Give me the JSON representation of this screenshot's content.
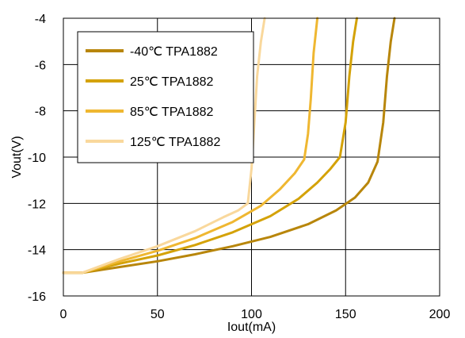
{
  "chart_data": {
    "type": "line",
    "xlabel": "Iout(mA)",
    "ylabel": "Vout(V)",
    "xlim": [
      0,
      200
    ],
    "ylim": [
      -16,
      -4
    ],
    "x_ticks": [
      "0",
      "50",
      "100",
      "150",
      "200"
    ],
    "y_ticks": [
      "-4",
      "-6",
      "-8",
      "-10",
      "-12",
      "-14",
      "-16"
    ],
    "grid": true,
    "legend_position": "top-left",
    "series": [
      {
        "name": "-40℃ TPA1882",
        "color": "#B8860B",
        "x": [
          0,
          10,
          30,
          50,
          70,
          90,
          110,
          130,
          145,
          155,
          162,
          167,
          170,
          172,
          174,
          176
        ],
        "y": [
          -15.0,
          -15.0,
          -14.75,
          -14.5,
          -14.2,
          -13.85,
          -13.45,
          -12.9,
          -12.3,
          -11.75,
          -11.1,
          -10.2,
          -8.5,
          -6.5,
          -5.0,
          -4.0
        ]
      },
      {
        "name": "25℃ TPA1882",
        "color": "#D4A207",
        "x": [
          0,
          10,
          30,
          50,
          70,
          90,
          110,
          125,
          135,
          142,
          147,
          150,
          152,
          154,
          156
        ],
        "y": [
          -15.0,
          -15.0,
          -14.6,
          -14.25,
          -13.8,
          -13.25,
          -12.55,
          -11.8,
          -11.1,
          -10.5,
          -10.0,
          -8.5,
          -6.5,
          -5.0,
          -4.0
        ]
      },
      {
        "name": "85℃ TPA1882",
        "color": "#EFB731",
        "x": [
          0,
          10,
          30,
          50,
          70,
          90,
          105,
          115,
          123,
          128,
          130,
          131.5,
          133,
          135
        ],
        "y": [
          -15.0,
          -15.0,
          -14.5,
          -14.05,
          -13.5,
          -12.8,
          -12.1,
          -11.4,
          -10.7,
          -10.1,
          -9.0,
          -7.5,
          -5.5,
          -4.0
        ]
      },
      {
        "name": "125℃ TPA1882",
        "color": "#F9D89C",
        "x": [
          0,
          10,
          30,
          50,
          70,
          85,
          93,
          98,
          100,
          101.5,
          103,
          105,
          107
        ],
        "y": [
          -15.0,
          -15.0,
          -14.4,
          -13.85,
          -13.2,
          -12.6,
          -12.3,
          -12.0,
          -10.5,
          -8.5,
          -6.5,
          -5.0,
          -4.0
        ]
      }
    ]
  }
}
